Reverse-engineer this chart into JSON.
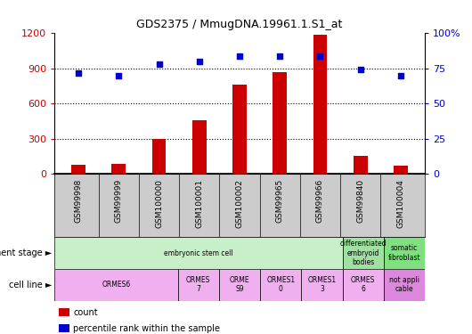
{
  "title": "GDS2375 / MmugDNA.19961.1.S1_at",
  "samples": [
    "GSM99998",
    "GSM99999",
    "GSM100000",
    "GSM100001",
    "GSM100002",
    "GSM99965",
    "GSM99966",
    "GSM99840",
    "GSM100004"
  ],
  "counts": [
    80,
    85,
    295,
    460,
    760,
    870,
    1190,
    155,
    65
  ],
  "percentiles": [
    72,
    70,
    78,
    80,
    84,
    84,
    84,
    74,
    70
  ],
  "ylim_left": [
    0,
    1200
  ],
  "ylim_right": [
    0,
    100
  ],
  "yticks_left": [
    0,
    300,
    600,
    900,
    1200
  ],
  "yticks_right": [
    0,
    25,
    50,
    75,
    100
  ],
  "ytick_right_labels": [
    "0",
    "25",
    "50",
    "75",
    "100%"
  ],
  "bar_color": "#cc0000",
  "dot_color": "#0000cc",
  "bg_color": "#ffffff",
  "plot_bg": "#ffffff",
  "xticklabel_bg": "#cccccc",
  "dev_stage_groups": [
    {
      "label": "embryonic stem cell",
      "start": 0,
      "end": 7,
      "color": "#c8f0c8"
    },
    {
      "label": "differentiated\nembryoid\nbodies",
      "start": 7,
      "end": 8,
      "color": "#a0e0a0"
    },
    {
      "label": "somatic\nfibroblast",
      "start": 8,
      "end": 9,
      "color": "#80e080"
    }
  ],
  "cell_line_groups": [
    {
      "label": "ORMES6",
      "start": 0,
      "end": 3,
      "color": "#f0b0f0"
    },
    {
      "label": "ORMES\n7",
      "start": 3,
      "end": 4,
      "color": "#f0b0f0"
    },
    {
      "label": "ORME\nS9",
      "start": 4,
      "end": 5,
      "color": "#f0b0f0"
    },
    {
      "label": "ORMES1\n0",
      "start": 5,
      "end": 6,
      "color": "#f0b0f0"
    },
    {
      "label": "ORMES1\n3",
      "start": 6,
      "end": 7,
      "color": "#f0b0f0"
    },
    {
      "label": "ORMES\n6",
      "start": 7,
      "end": 8,
      "color": "#f0b0f0"
    },
    {
      "label": "not appli\ncable",
      "start": 8,
      "end": 9,
      "color": "#dd88dd"
    }
  ],
  "tick_color_left": "#cc0000",
  "tick_color_right": "#0000cc",
  "grid_color": "#000000",
  "legend_items": [
    {
      "color": "#cc0000",
      "label": "count"
    },
    {
      "color": "#0000cc",
      "label": "percentile rank within the sample"
    }
  ]
}
